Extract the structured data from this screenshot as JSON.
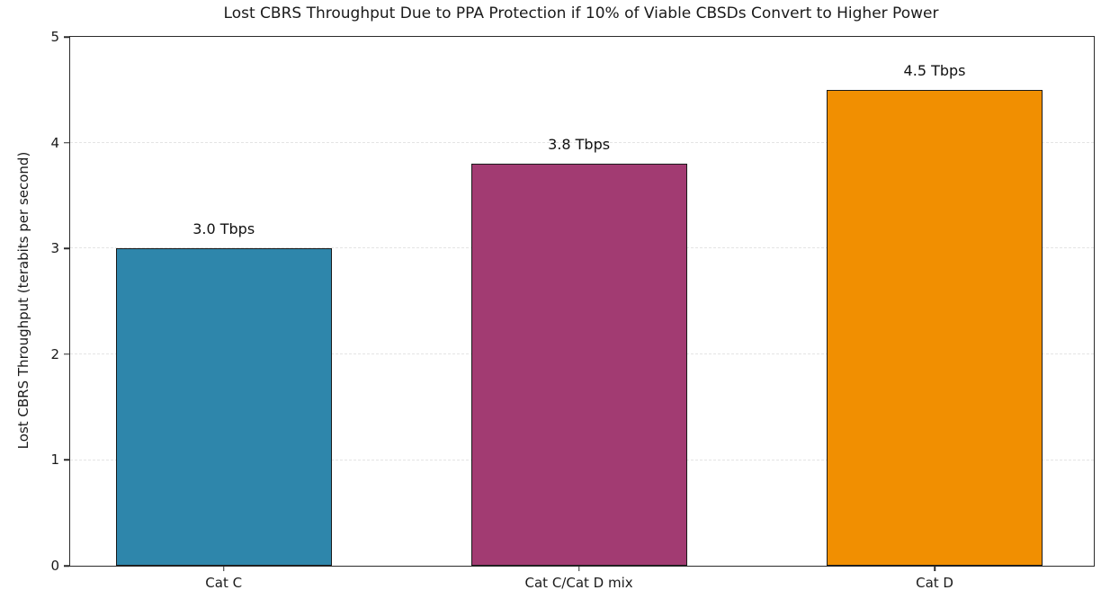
{
  "chart_data": {
    "type": "bar",
    "title": "Lost CBRS Throughput Due to PPA Protection if 10% of Viable CBSDs Convert to Higher Power",
    "xlabel": "",
    "ylabel": "Lost CBRS Throughput (terabits per second)",
    "categories": [
      "Cat C",
      "Cat C/Cat D mix",
      "Cat D"
    ],
    "values": [
      3.0,
      3.8,
      4.5
    ],
    "value_labels": [
      "3.0 Tbps",
      "3.8 Tbps",
      "4.5 Tbps"
    ],
    "bar_colors": [
      "#2E86AB",
      "#A23B72",
      "#F18F01"
    ],
    "bar_edge_color": "#1a1a1a",
    "ylim": [
      0,
      5
    ],
    "yticks": [
      0,
      1,
      2,
      3,
      4,
      5
    ],
    "grid": "horizontal-dashed",
    "gridline_color": "#e4e4e4",
    "legend": "none"
  }
}
